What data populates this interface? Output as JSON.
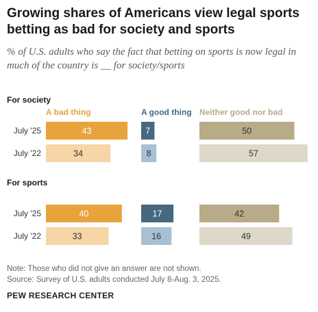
{
  "header": {
    "title": "Growing shares of Americans view legal sports betting as bad for society and sports",
    "subtitle": "% of U.S. adults who say the fact that betting on sports is now legal in much of the country is __ for society/sports"
  },
  "colors": {
    "bad_dark": "#e8a33d",
    "bad_light": "#f7d5a7",
    "good_dark": "#466880",
    "good_light": "#a8c0d3",
    "neither_dark": "#b8ab88",
    "neither_light": "#ddd8c8",
    "bad_label": "#e8a33d",
    "good_label": "#466880",
    "neither_label": "#b8ab88"
  },
  "chart_data": {
    "type": "bar",
    "orientation": "horizontal",
    "series": [
      {
        "name": "A bad thing"
      },
      {
        "name": "A good thing"
      },
      {
        "name": "Neither good nor bad"
      }
    ],
    "groups": [
      {
        "label": "For society",
        "rows": [
          {
            "label": "July '25",
            "values": [
              43,
              7,
              50
            ]
          },
          {
            "label": "July '22",
            "values": [
              34,
              8,
              57
            ]
          }
        ]
      },
      {
        "label": "For sports",
        "rows": [
          {
            "label": "July '25",
            "values": [
              40,
              17,
              42
            ]
          },
          {
            "label": "July '22",
            "values": [
              33,
              16,
              49
            ]
          }
        ]
      }
    ]
  },
  "footer": {
    "note": "Note: Those who did not give an answer are not shown.",
    "source": "Source: Survey of U.S. adults conducted July 8-Aug. 3, 2025.",
    "brand": "PEW RESEARCH CENTER"
  }
}
